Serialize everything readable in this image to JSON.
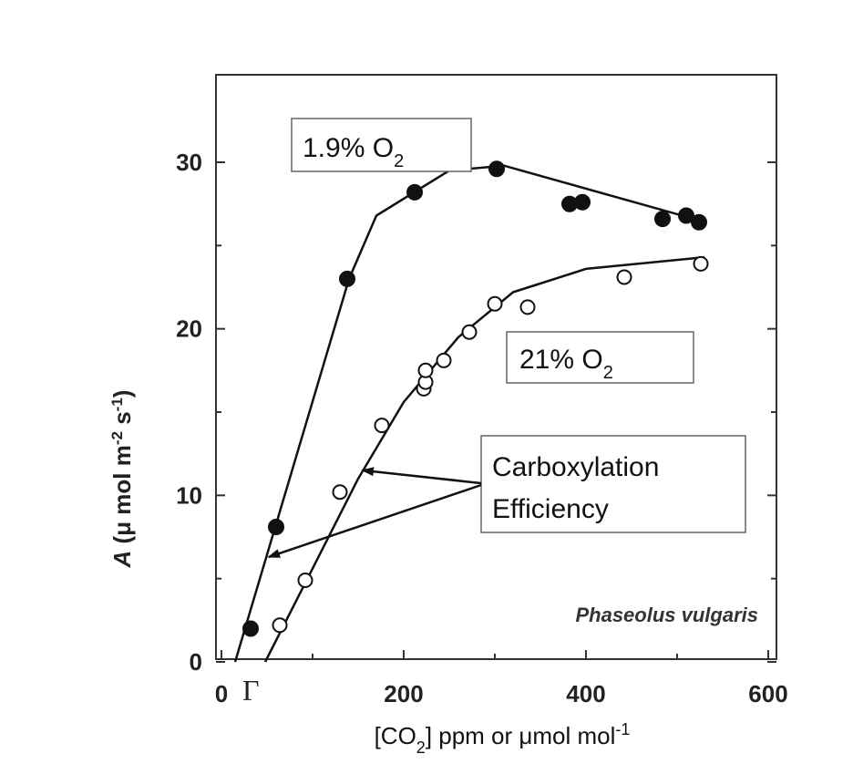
{
  "chart_data": {
    "type": "line",
    "xlabel_main": "[CO",
    "xlabel_sub": "2",
    "xlabel_rest": "] ppm or μmol mol",
    "xlabel_sup": "-1",
    "ylabel_italic": "A",
    "ylabel_rest": " (μ mol m",
    "ylabel_sup1": "-2",
    "ylabel_mid": " s",
    "ylabel_sup2": "-1",
    "ylabel_end": ")",
    "xlim": [
      0,
      600
    ],
    "ylim": [
      0,
      35
    ],
    "x_ticks": [
      {
        "value": 0,
        "label": "0"
      },
      {
        "value": 200,
        "label": "200"
      },
      {
        "value": 400,
        "label": "400"
      },
      {
        "value": 600,
        "label": "600"
      }
    ],
    "y_ticks": [
      {
        "value": 0,
        "label": "0"
      },
      {
        "value": 10,
        "label": "10"
      },
      {
        "value": 20,
        "label": "20"
      },
      {
        "value": 30,
        "label": "30"
      }
    ],
    "gamma_label": "Γ",
    "species": "Phaseolus vulgaris",
    "series": [
      {
        "name": "1.9% O2",
        "marker": "filled",
        "points": [
          [
            32,
            2
          ],
          [
            60,
            8.1
          ],
          [
            138,
            23
          ],
          [
            212,
            28.2
          ],
          [
            302,
            29.6
          ],
          [
            382,
            27.5
          ],
          [
            396,
            27.6
          ],
          [
            484,
            26.6
          ],
          [
            510,
            26.8
          ],
          [
            524,
            26.4
          ]
        ],
        "fit": [
          [
            15,
            0
          ],
          [
            140,
            23
          ],
          [
            170,
            26.8
          ],
          [
            250,
            29.5
          ],
          [
            310,
            29.8
          ],
          [
            525,
            26.5
          ]
        ]
      },
      {
        "name": "21% O2",
        "marker": "open",
        "points": [
          [
            64,
            2.2
          ],
          [
            92,
            4.9
          ],
          [
            130,
            10.2
          ],
          [
            176,
            14.2
          ],
          [
            222,
            16.4
          ],
          [
            224,
            16.8
          ],
          [
            224,
            17.5
          ],
          [
            244,
            18.1
          ],
          [
            272,
            19.8
          ],
          [
            300,
            21.5
          ],
          [
            336,
            21.3
          ],
          [
            442,
            23.1
          ],
          [
            526,
            23.9
          ]
        ],
        "fit": [
          [
            48,
            0
          ],
          [
            150,
            11
          ],
          [
            200,
            15.6
          ],
          [
            260,
            19.5
          ],
          [
            320,
            22.2
          ],
          [
            400,
            23.6
          ],
          [
            530,
            24.3
          ]
        ]
      }
    ],
    "legend_boxes": {
      "box1": {
        "text": "1.9% O",
        "sub": "2"
      },
      "box2": {
        "text": "21% O",
        "sub": "2"
      }
    },
    "annotation": {
      "line1": "Carboxylation",
      "line2": "Efficiency",
      "arrow_targets": [
        [
          52,
          6.3
        ],
        [
          155,
          11.5
        ]
      ]
    }
  }
}
